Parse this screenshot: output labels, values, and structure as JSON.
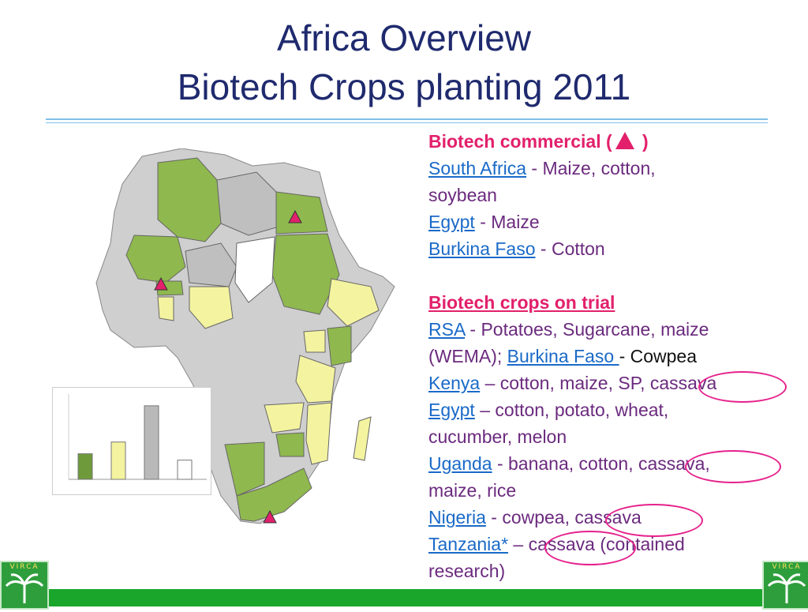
{
  "title": {
    "line1": "Africa Overview",
    "line2": "Biotech Crops planting 2011"
  },
  "commercial": {
    "heading_prefix": "Biotech commercial   (",
    "heading_suffix": " )",
    "items": [
      {
        "country": "South Africa",
        "crops": " - Maize, cotton,",
        "crops_cont": "soybean"
      },
      {
        "country": "Egypt",
        "crops": "  - Maize"
      },
      {
        "country": "Burkina Faso",
        "crops": " - Cotton"
      }
    ]
  },
  "trial": {
    "heading": "Biotech crops on trial",
    "rsa": {
      "country": "RSA",
      "crops": " - Potatoes, Sugarcane, maize",
      "crops_cont": "(WEMA); ",
      "bf_country": "Burkina Faso ",
      "bf_crops": "- Cowpea"
    },
    "kenya": {
      "country": "Kenya",
      "crops": " – cotton, maize, SP, cassava"
    },
    "egypt": {
      "country": "Egypt",
      "crops": " – cotton, potato, wheat,",
      "crops_cont": "cucumber, melon"
    },
    "uganda": {
      "country": "Uganda",
      "crops": " - banana, cotton, cassava,",
      "crops_cont": "maize, rice"
    },
    "nigeria": {
      "country": "Nigeria",
      "crops": " - cowpea, cassava"
    },
    "tanzania": {
      "country": "Tanzania*",
      "crops": " – cassava  (contained",
      "crops_cont": "research)"
    }
  },
  "legend_chart": {
    "type": "bar",
    "values": [
      2.4,
      3.5,
      6.9,
      1.8
    ],
    "colors": [
      "#6f9a3c",
      "#f4f3a0",
      "#b9b9b9",
      "#ffffff"
    ]
  },
  "logos": {
    "text": "VIRCA"
  },
  "colors": {
    "biotech_green": "#8fb84e",
    "trial_yellow": "#f4f3a0",
    "none_gray": "#bfbfbf",
    "marker_pink": "#e2206b",
    "title_blue": "#1f2a6e",
    "footer_green": "#1aa52b"
  }
}
